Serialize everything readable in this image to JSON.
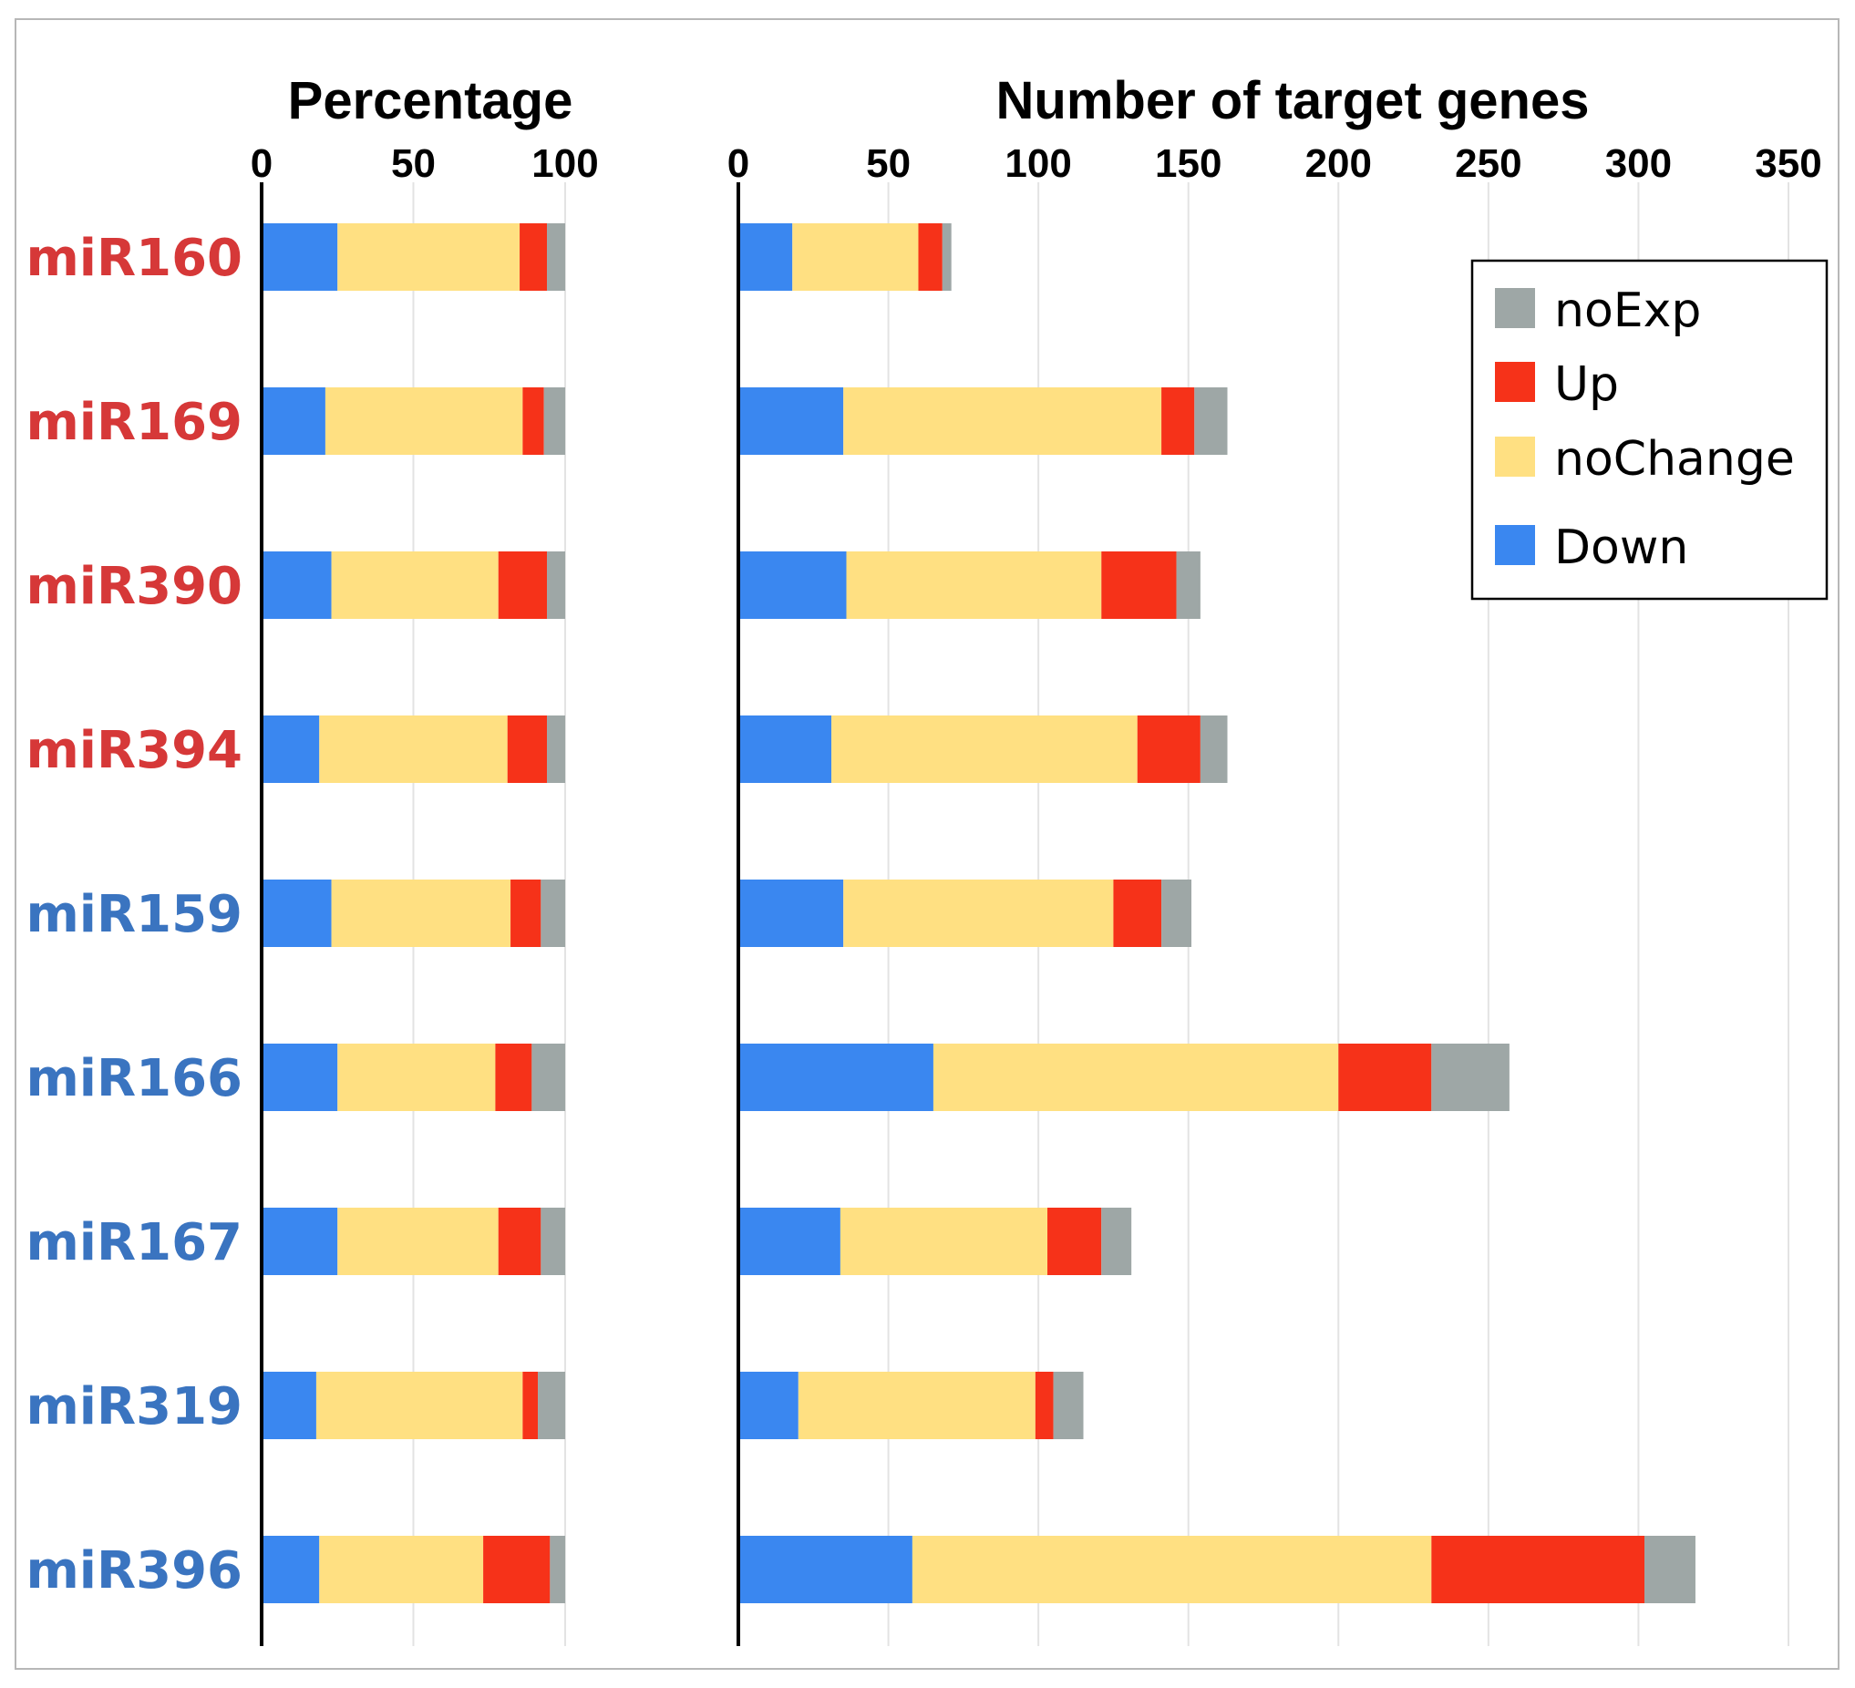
{
  "colors": {
    "Down": "#3a87f0",
    "noChange": "#ffe082",
    "Up": "#f63219",
    "noExp": "#9ea7a6",
    "label_red": "#d63838",
    "label_blue": "#3a74c0"
  },
  "legend": {
    "items": [
      {
        "label": "noExp",
        "key": "noExp"
      },
      {
        "label": "Up",
        "key": "Up"
      },
      {
        "label": "noChange",
        "key": "noChange"
      },
      {
        "label": "Down",
        "key": "Down"
      }
    ]
  },
  "chart_data": [
    {
      "type": "bar",
      "stacked": true,
      "orientation": "horizontal",
      "title": "Percentage",
      "xlim": [
        0,
        100
      ],
      "xticks": [
        0,
        50,
        100
      ],
      "grid": true,
      "categories": [
        "miR160",
        "miR169",
        "miR390",
        "miR394",
        "miR159",
        "miR166",
        "miR167",
        "miR319",
        "miR396"
      ],
      "category_colors": [
        "label_red",
        "label_red",
        "label_red",
        "label_red",
        "label_blue",
        "label_blue",
        "label_blue",
        "label_blue",
        "label_blue"
      ],
      "series": [
        {
          "name": "Down",
          "values": [
            25,
            21,
            23,
            19,
            23,
            25,
            25,
            18,
            19
          ]
        },
        {
          "name": "noChange",
          "values": [
            60,
            65,
            55,
            62,
            59,
            52,
            53,
            68,
            54
          ]
        },
        {
          "name": "Up",
          "values": [
            9,
            7,
            16,
            13,
            10,
            12,
            14,
            5,
            22
          ]
        },
        {
          "name": "noExp",
          "values": [
            6,
            7,
            6,
            6,
            8,
            11,
            8,
            9,
            5
          ]
        }
      ]
    },
    {
      "type": "bar",
      "stacked": true,
      "orientation": "horizontal",
      "title": "Number of target genes",
      "xlim": [
        0,
        350
      ],
      "xticks": [
        0,
        50,
        100,
        150,
        200,
        250,
        300,
        350
      ],
      "grid": true,
      "legend": "top-right",
      "categories": [
        "miR160",
        "miR169",
        "miR390",
        "miR394",
        "miR159",
        "miR166",
        "miR167",
        "miR319",
        "miR396"
      ],
      "series": [
        {
          "name": "Down",
          "values": [
            18,
            35,
            36,
            31,
            35,
            65,
            34,
            20,
            58
          ]
        },
        {
          "name": "noChange",
          "values": [
            42,
            106,
            85,
            102,
            90,
            135,
            69,
            79,
            173
          ]
        },
        {
          "name": "Up",
          "values": [
            8,
            11,
            25,
            21,
            16,
            31,
            18,
            6,
            71
          ]
        },
        {
          "name": "noExp",
          "values": [
            3,
            11,
            8,
            9,
            10,
            26,
            10,
            10,
            17
          ]
        }
      ]
    }
  ]
}
